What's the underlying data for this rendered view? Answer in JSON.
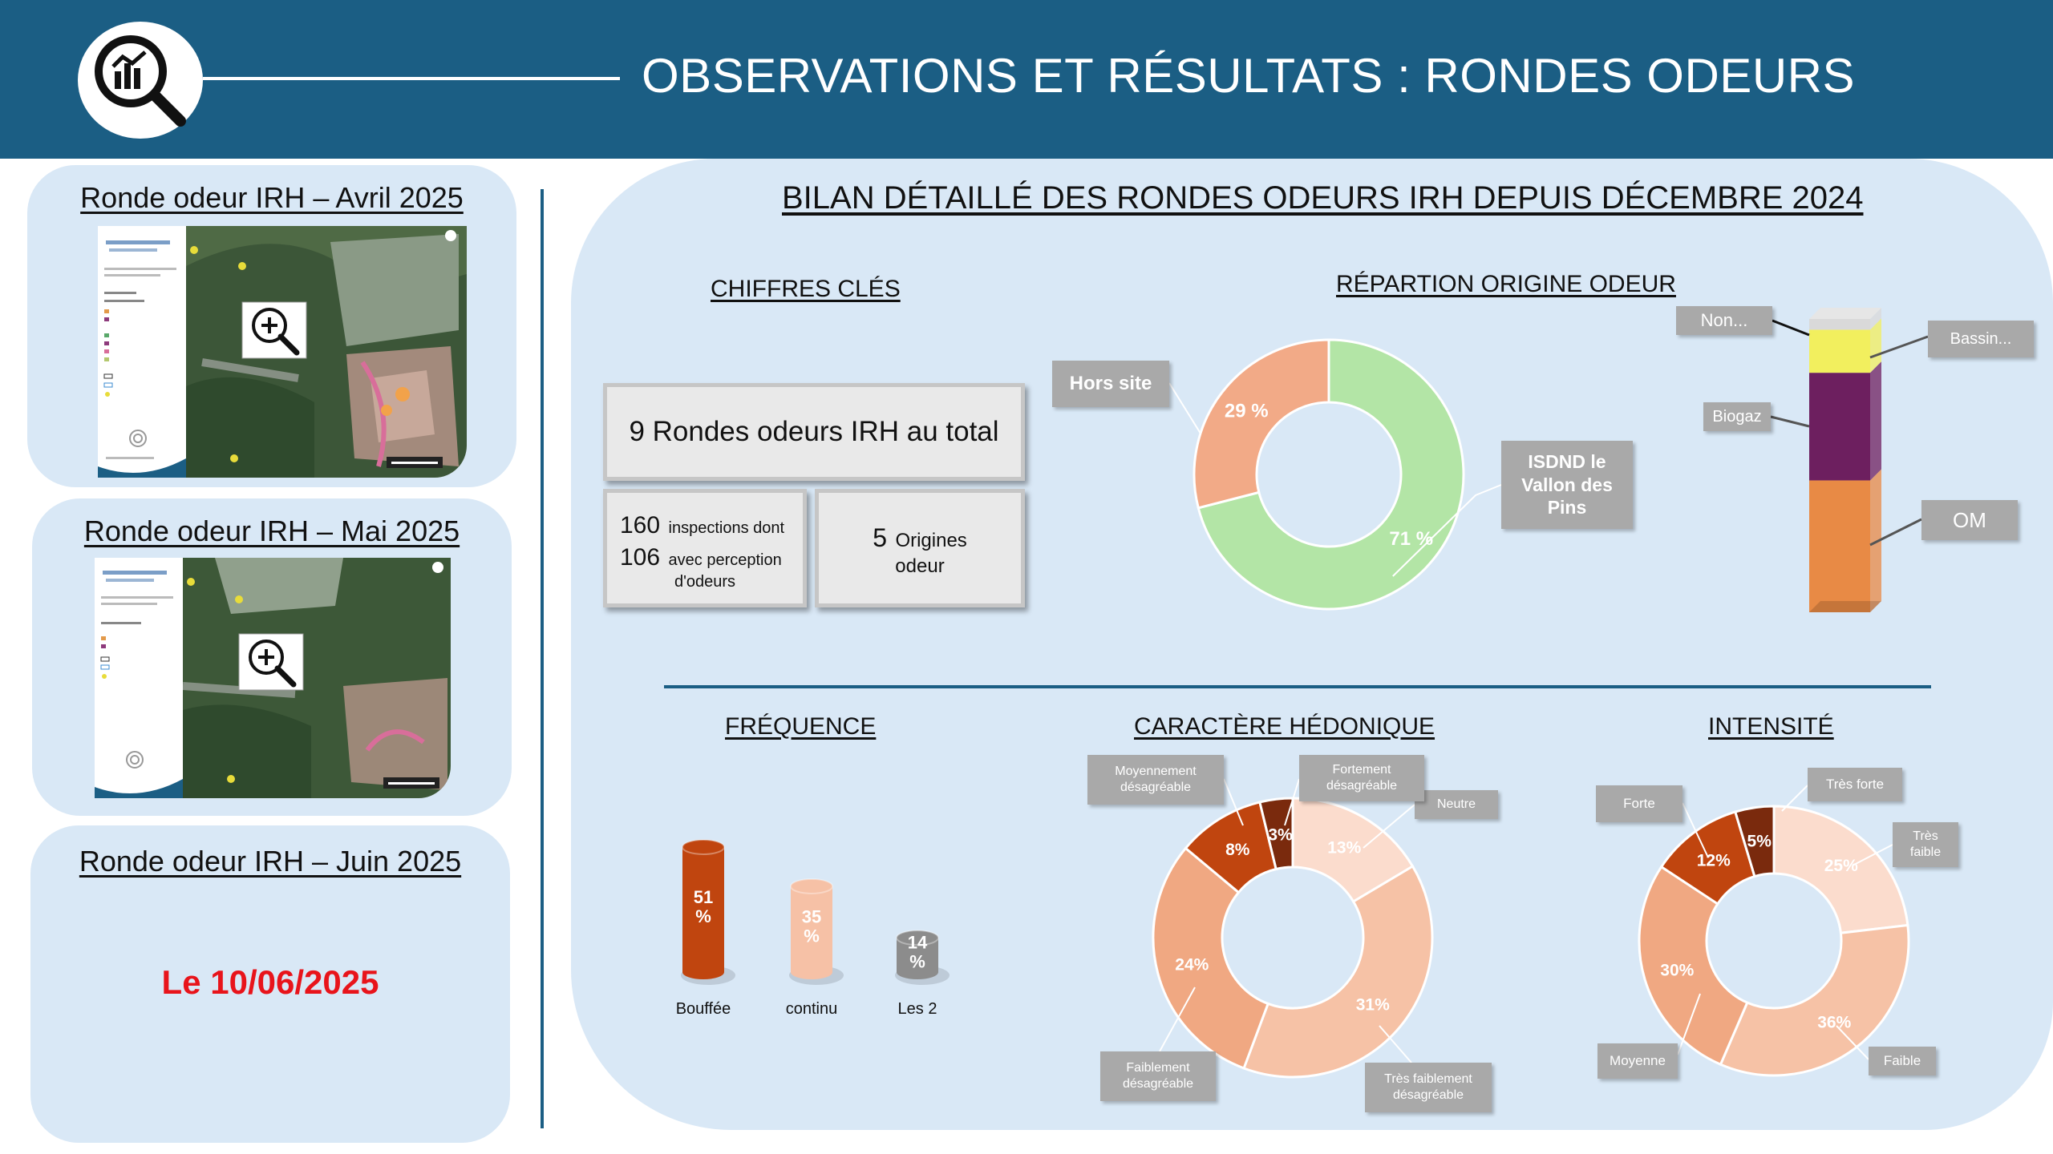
{
  "header": {
    "title": "OBSERVATIONS ET RÉSULTATS : RONDES ODEURS",
    "icon": "magnifier-chart-icon"
  },
  "left_cards": [
    {
      "title": "Ronde odeur IRH – Avril 2025",
      "type": "map"
    },
    {
      "title": "Ronde odeur IRH – Mai 2025",
      "type": "map"
    },
    {
      "title": "Ronde odeur IRH – Juin 2025",
      "type": "date",
      "date": "Le 10/06/2025"
    }
  ],
  "panel": {
    "title": "BILAN DÉTAILLÉ DES RONDES ODEURS IRH DEPUIS DÉCEMBRE 2024"
  },
  "key_figures": {
    "title": "CHIFFRES CLÉS",
    "total": "9 Rondes odeurs IRH au total",
    "inspections_num": "160",
    "inspections_text": "inspections dont",
    "perception_num": "106",
    "perception_text": "avec perception",
    "perception_text2": "d'odeurs",
    "origins_num": "5",
    "origins_text": "Origines",
    "origins_text2": "odeur"
  },
  "colors": {
    "header": "#1b5e84",
    "panel": "#d9e8f6",
    "date_red": "#e8141b"
  },
  "chart_data": [
    {
      "type": "pie",
      "title": "RÉPARTION ORIGINE ODEUR",
      "slices": [
        {
          "label": "ISDND le Vallon des Pins",
          "value": 71,
          "display": "71 %",
          "color": "#b3e5a6"
        },
        {
          "label": "Hors site",
          "value": 29,
          "display": "29 %",
          "color": "#f2aa87"
        }
      ]
    },
    {
      "type": "bar",
      "stacked": true,
      "title": "",
      "series": [
        {
          "name": "OM",
          "value": 49,
          "color": "#e88a45"
        },
        {
          "name": "Biogaz",
          "value": 40,
          "color": "#6d1f5f"
        },
        {
          "name": "Bassin...",
          "value": 16,
          "color": "#f2ef5e"
        },
        {
          "name": "Non...",
          "value": 4,
          "color": "#d9d9d9"
        }
      ]
    },
    {
      "type": "bar",
      "title": "FRÉQUENCE",
      "categories": [
        "Bouffée",
        "continu",
        "Les 2"
      ],
      "values": [
        51,
        35,
        14
      ],
      "display": [
        "51 %",
        "35 %",
        "14 %"
      ],
      "colors": [
        "#c0450f",
        "#f6c1a6",
        "#8c8c8c"
      ]
    },
    {
      "type": "pie",
      "title": "CARACTÈRE HÉDONIQUE",
      "slices": [
        {
          "label": "Neutre",
          "value": 13,
          "display": "13%",
          "color": "#fbdccd"
        },
        {
          "label": "Très faiblement désagréable",
          "value": 31,
          "display": "31%",
          "color": "#f6c2a6"
        },
        {
          "label": "Faiblement désagréable",
          "value": 24,
          "display": "24%",
          "color": "#f0a882"
        },
        {
          "label": "Moyennement désagréable",
          "value": 8,
          "display": "8%",
          "color": "#c0450f"
        },
        {
          "label": "Fortement désagréable",
          "value": 3,
          "display": "3%",
          "color": "#7a2a0d"
        }
      ]
    },
    {
      "type": "pie",
      "title": "INTENSITÉ",
      "slices": [
        {
          "label": "Très faible",
          "value": 25,
          "display": "25%",
          "color": "#fbdccd"
        },
        {
          "label": "Faible",
          "value": 36,
          "display": "36%",
          "color": "#f6c2a6"
        },
        {
          "label": "Moyenne",
          "value": 30,
          "display": "30%",
          "color": "#f0a882"
        },
        {
          "label": "Forte",
          "value": 12,
          "display": "12%",
          "color": "#c0450f"
        },
        {
          "label": "Très forte",
          "value": 5,
          "display": "5%",
          "color": "#7a2a0d"
        }
      ]
    }
  ]
}
